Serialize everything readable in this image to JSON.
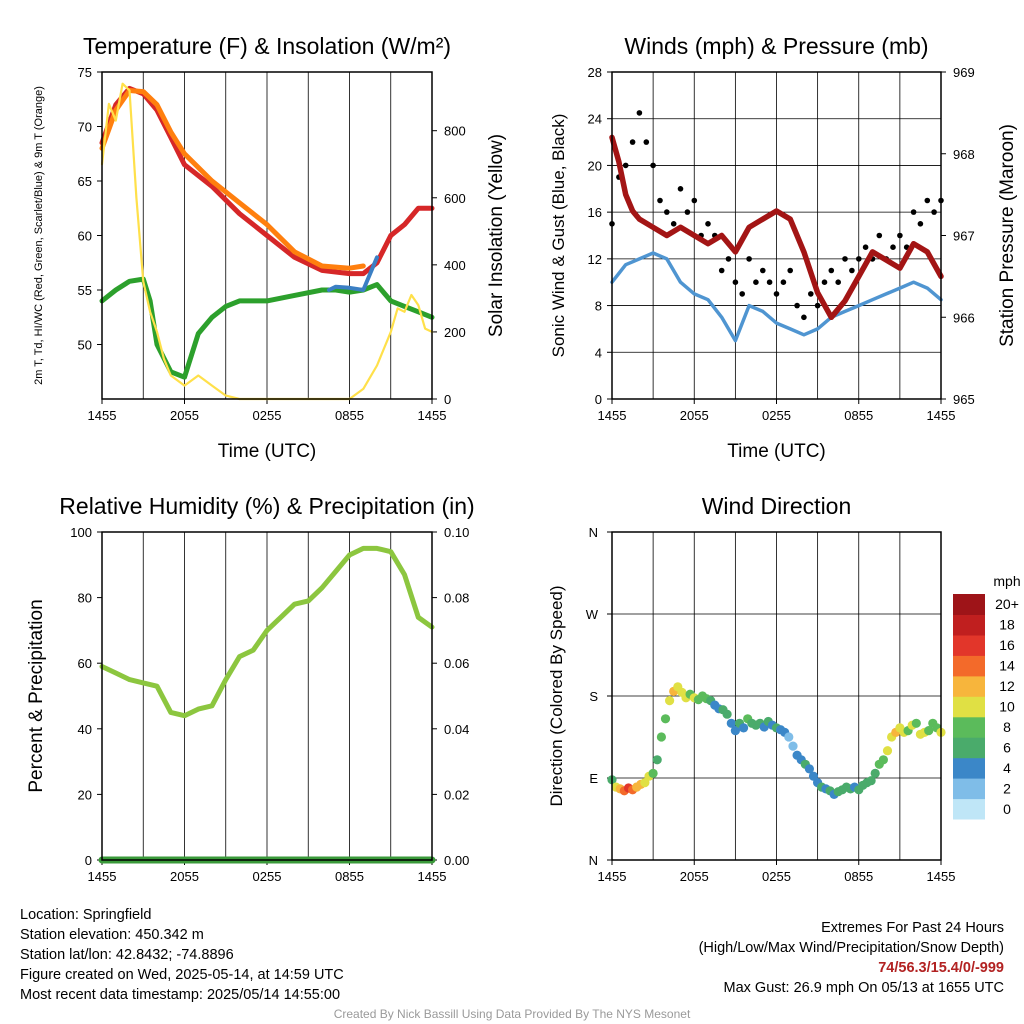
{
  "chart_data": [
    {
      "type": "line",
      "title": "Temperature (F) & Insolation (W/m²)",
      "xlabel": "Time (UTC)",
      "ylabel": "2m T, Td, HI/WC (Red, Green, Scarlet/Blue) & 9m T (Orange)",
      "ylabel2": "Solar Insolation (Yellow)",
      "xticks": [
        "1455",
        "2055",
        "0255",
        "0855",
        "1455"
      ],
      "ylim": [
        45,
        75
      ],
      "yticks": [
        50,
        55,
        60,
        65,
        70,
        75
      ],
      "ylim2": [
        0,
        975
      ],
      "yticks2": [
        0,
        200,
        400,
        600,
        800
      ],
      "series": [
        {
          "color": "#d62728",
          "x": [
            0,
            1,
            2,
            3,
            4,
            5,
            6,
            8,
            10,
            12,
            14,
            16,
            18,
            19,
            20,
            21,
            22,
            23,
            24
          ],
          "values": [
            68.5,
            72,
            73.5,
            73,
            71.5,
            69,
            66.5,
            64.5,
            62,
            60,
            58,
            56.8,
            56.5,
            56.5,
            57.5,
            60,
            61,
            62.5,
            62.5
          ]
        },
        {
          "color": "#ff7f0e",
          "x": [
            0,
            1,
            2,
            3,
            4,
            5,
            6,
            8,
            10,
            12,
            14,
            16,
            18,
            19
          ],
          "values": [
            68,
            71.5,
            73.3,
            73.2,
            72,
            69.5,
            67.5,
            65,
            63,
            61,
            58.5,
            57.2,
            57,
            57.2
          ]
        },
        {
          "color": "#2ca02c",
          "x": [
            0,
            1,
            2,
            3,
            3.5,
            4,
            5,
            6,
            7,
            8,
            9,
            10,
            12,
            14,
            16,
            17,
            18,
            19,
            20,
            21,
            22,
            23,
            24
          ],
          "values": [
            54,
            55,
            55.8,
            56,
            54,
            50,
            47.5,
            47,
            51,
            52.5,
            53.5,
            54,
            54,
            54.5,
            55,
            55,
            54.8,
            55,
            55.5,
            54,
            53.5,
            53,
            52.5
          ]
        },
        {
          "color": "#3b7fc4",
          "x": [
            16.5,
            17,
            18,
            19,
            20
          ],
          "values": [
            55,
            55.3,
            55.2,
            55,
            58
          ]
        },
        {
          "color": "#ffe04a",
          "x": [
            0,
            0.5,
            1,
            1.5,
            2,
            2.5,
            3,
            3.5,
            4,
            4.5,
            5,
            6,
            7,
            8,
            9,
            10,
            12,
            14,
            16,
            18,
            19,
            20,
            21,
            21.5,
            22,
            22.5,
            23,
            23.5,
            24
          ],
          "values": [
            700,
            880,
            830,
            940,
            920,
            600,
            350,
            260,
            200,
            120,
            70,
            40,
            70,
            40,
            10,
            0,
            0,
            0,
            0,
            0,
            30,
            100,
            200,
            270,
            260,
            310,
            280,
            210,
            200
          ],
          "axis": "right"
        }
      ]
    },
    {
      "type": "line",
      "title": "Winds (mph) & Pressure (mb)",
      "xlabel": "Time (UTC)",
      "ylabel": "Sonic Wind & Gust (Blue, Black)",
      "ylabel2": "Station Pressure (Maroon)",
      "xticks": [
        "1455",
        "2055",
        "0255",
        "0855",
        "1455"
      ],
      "ylim": [
        0,
        28
      ],
      "yticks": [
        0,
        4,
        8,
        12,
        16,
        20,
        24,
        28
      ],
      "ylim2": [
        965,
        969
      ],
      "yticks2": [
        965,
        966,
        967,
        968,
        969
      ],
      "series": [
        {
          "color": "#4f95d1",
          "x": [
            0,
            1,
            2,
            3,
            4,
            5,
            6,
            7,
            8,
            9,
            10,
            11,
            12,
            13,
            14,
            15,
            16,
            17,
            18,
            19,
            20,
            21,
            22,
            23,
            24
          ],
          "values": [
            10,
            11.5,
            12,
            12.5,
            12,
            10,
            9,
            8.5,
            7,
            5,
            8,
            7.5,
            6.5,
            6,
            5.5,
            6,
            7,
            7.5,
            8,
            8.5,
            9,
            9.5,
            10,
            9.5,
            8.5
          ]
        },
        {
          "color": "#000000",
          "type": "scatter",
          "x": [
            0,
            0.5,
            1,
            1.5,
            2,
            2.5,
            3,
            3.5,
            4,
            4.5,
            5,
            5.5,
            6,
            6.5,
            7,
            7.5,
            8,
            8.5,
            9,
            9.5,
            10,
            10.5,
            11,
            11.5,
            12,
            12.5,
            13,
            13.5,
            14,
            14.5,
            15,
            15.5,
            16,
            16.5,
            17,
            17.5,
            18,
            18.5,
            19,
            19.5,
            20,
            20.5,
            21,
            21.5,
            22,
            22.5,
            23,
            23.5,
            24
          ],
          "values": [
            15,
            19,
            20,
            22,
            24.5,
            22,
            20,
            17,
            16,
            15,
            18,
            16,
            17,
            14,
            15,
            14,
            11,
            12,
            10,
            9,
            12,
            10,
            11,
            10,
            9,
            10,
            11,
            8,
            7,
            9,
            8,
            10,
            11,
            10,
            12,
            11,
            12,
            13,
            12,
            14,
            12,
            13,
            14,
            13,
            16,
            15,
            17,
            16,
            17
          ]
        },
        {
          "color": "#a31515",
          "x": [
            0,
            0.5,
            1,
            1.5,
            2,
            3,
            4,
            5,
            6,
            7,
            8,
            9,
            10,
            11,
            12,
            13,
            14,
            15,
            16,
            17,
            18,
            19,
            20,
            21,
            22,
            23,
            24
          ],
          "values": [
            968.2,
            967.9,
            967.5,
            967.3,
            967.2,
            967.1,
            967.0,
            967.1,
            967.0,
            966.9,
            967.0,
            966.8,
            967.1,
            967.2,
            967.3,
            967.2,
            966.8,
            966.3,
            966.0,
            966.2,
            966.5,
            966.8,
            966.7,
            966.6,
            966.9,
            966.8,
            966.5
          ],
          "axis": "right"
        }
      ]
    },
    {
      "type": "line",
      "title": "Relative Humidity (%) & Precipitation (in)",
      "xlabel": "",
      "ylabel": "Percent & Precipitation",
      "xticks": [
        "1455",
        "2055",
        "0255",
        "0855",
        "1455"
      ],
      "ylim": [
        0,
        100
      ],
      "yticks": [
        0,
        20,
        40,
        60,
        80,
        100
      ],
      "ylim2": [
        0,
        0.1
      ],
      "yticks2": [
        "0.00",
        "0.02",
        "0.04",
        "0.06",
        "0.08",
        "0.10"
      ],
      "series": [
        {
          "color": "#8cc63f",
          "x": [
            0,
            1,
            2,
            3,
            4,
            5,
            6,
            7,
            8,
            9,
            10,
            11,
            12,
            13,
            14,
            15,
            16,
            17,
            18,
            19,
            20,
            21,
            22,
            23,
            24
          ],
          "values": [
            59,
            57,
            55,
            54,
            53,
            45,
            44,
            46,
            47,
            55,
            62,
            64,
            70,
            74,
            78,
            79,
            83,
            88,
            93,
            95,
            95,
            94,
            87,
            74,
            71
          ]
        },
        {
          "color": "#3a9a3a",
          "x": [
            0,
            24
          ],
          "values": [
            0,
            0
          ],
          "axis": "right"
        }
      ]
    },
    {
      "type": "scatter",
      "title": "Wind Direction",
      "xlabel": "",
      "ylabel": "Direction (Colored By Speed)",
      "xticks": [
        "1455",
        "2055",
        "0255",
        "0855",
        "1455"
      ],
      "yticks": [
        "N",
        "E",
        "S",
        "W",
        "N"
      ],
      "ylim": [
        0,
        360
      ],
      "colorbar_title": "mph",
      "colorbar_labels": [
        "0",
        "2",
        "4",
        "6",
        "8",
        "10",
        "12",
        "14",
        "16",
        "18",
        "20+"
      ],
      "colorbar_colors": [
        "#bfe6f7",
        "#7fbde8",
        "#3b87c8",
        "#4aab6b",
        "#5bbb5b",
        "#e0e044",
        "#f7b53c",
        "#f36a2a",
        "#e2362a",
        "#c01f1f",
        "#9e1418"
      ],
      "x": [
        0,
        0.3,
        0.6,
        0.9,
        1.2,
        1.5,
        1.8,
        2.1,
        2.4,
        2.7,
        3.0,
        3.3,
        3.6,
        3.9,
        4.2,
        4.5,
        4.8,
        5.1,
        5.4,
        5.7,
        6.0,
        6.3,
        6.6,
        6.9,
        7.2,
        7.5,
        7.8,
        8.1,
        8.4,
        8.7,
        9.0,
        9.3,
        9.6,
        9.9,
        10.2,
        10.5,
        10.8,
        11.1,
        11.4,
        11.7,
        12.0,
        12.3,
        12.6,
        12.9,
        13.2,
        13.5,
        13.8,
        14.1,
        14.4,
        14.7,
        15.0,
        15.3,
        15.6,
        15.9,
        16.2,
        16.5,
        16.8,
        17.1,
        17.4,
        17.7,
        18.0,
        18.3,
        18.6,
        18.9,
        19.2,
        19.5,
        19.8,
        20.1,
        20.4,
        20.7,
        21.0,
        21.3,
        21.6,
        21.9,
        22.2,
        22.5,
        22.8,
        23.1,
        23.4,
        23.7,
        24.0
      ],
      "values": [
        88,
        80,
        78,
        76,
        79,
        77,
        80,
        83,
        85,
        92,
        95,
        110,
        135,
        155,
        175,
        185,
        190,
        184,
        178,
        182,
        178,
        176,
        180,
        177,
        175,
        170,
        166,
        165,
        160,
        150,
        142,
        150,
        145,
        155,
        150,
        148,
        150,
        146,
        152,
        148,
        145,
        143,
        140,
        135,
        125,
        115,
        110,
        105,
        100,
        92,
        85,
        80,
        78,
        76,
        72,
        75,
        77,
        80,
        78,
        80,
        77,
        82,
        85,
        87,
        95,
        105,
        110,
        120,
        135,
        140,
        145,
        140,
        142,
        148,
        150,
        138,
        140,
        142,
        150,
        145,
        140
      ],
      "speeds": [
        6,
        10,
        13,
        14,
        16,
        15,
        13,
        12,
        11,
        10,
        8,
        7,
        8,
        9,
        11,
        12,
        10,
        11,
        10,
        9,
        10,
        8,
        9,
        8,
        6,
        5,
        4,
        7,
        6,
        5,
        4,
        6,
        5,
        8,
        7,
        6,
        7,
        5,
        6,
        4,
        7,
        5,
        4,
        3,
        3,
        4,
        5,
        6,
        5,
        4,
        4,
        6,
        5,
        6,
        5,
        6,
        7,
        7,
        6,
        5,
        6,
        6,
        7,
        6,
        7,
        8,
        9,
        10,
        11,
        12,
        11,
        10,
        9,
        10,
        8,
        11,
        10,
        9,
        8,
        9,
        10
      ]
    }
  ],
  "info_left": [
    "Location: Springfield",
    "Station elevation: 450.342 m",
    "Station lat/lon: 42.8432; -74.8896",
    "Figure created on Wed, 2025-05-14, at 14:59 UTC",
    "Most recent data timestamp: 2025/05/14 14:55:00"
  ],
  "extremes": {
    "title": "Extremes For Past 24 Hours",
    "subtitle": "(High/Low/Max Wind/Precipitation/Snow Depth)",
    "values": "74/56.3/15.4/0/-999",
    "max_gust": "Max Gust: 26.9 mph On 05/13 at 1655 UTC"
  },
  "credit": "Created By Nick Bassill Using Data Provided By The NYS Mesonet"
}
